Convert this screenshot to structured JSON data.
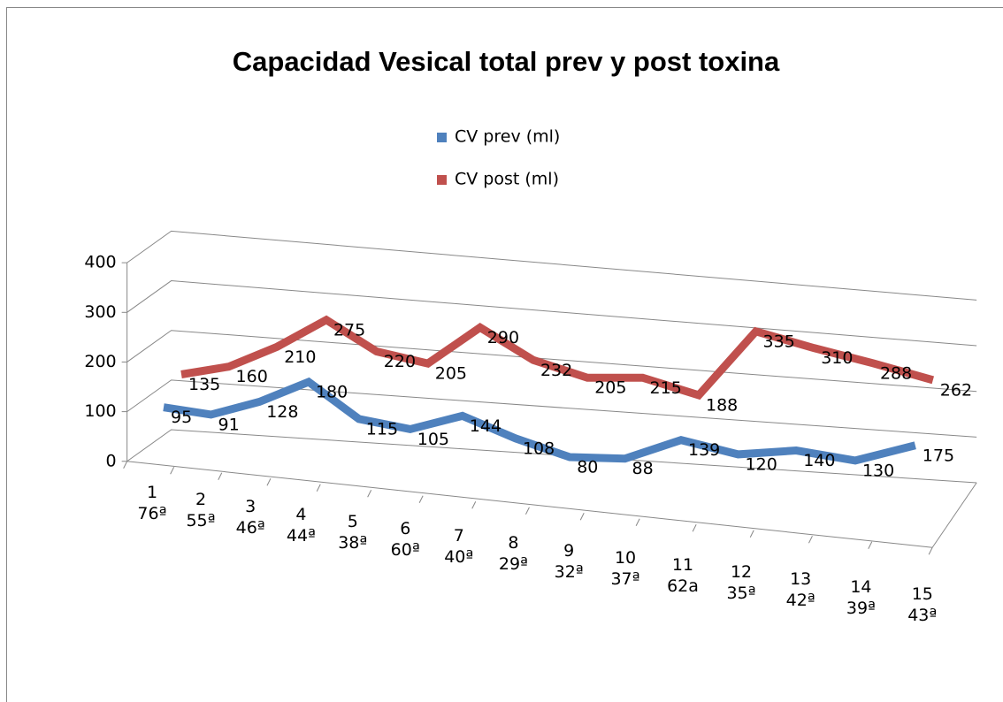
{
  "chart_data": {
    "type": "line3d",
    "title": "Capacidad Vesical total prev y post toxina",
    "categories": [
      "1\n76ª",
      "2\n55ª",
      "3\n46ª",
      "4\n44ª",
      "5\n38ª",
      "6\n60ª",
      "7\n40ª",
      "8\n29ª",
      "9\n32ª",
      "10\n37ª",
      "11\n62a",
      "12\n35ª",
      "13\n42ª",
      "14\n39ª",
      "15\n43ª"
    ],
    "series": [
      {
        "name": "CV prev (ml)",
        "color": "#4f81bd",
        "values": [
          95,
          91,
          128,
          180,
          115,
          105,
          144,
          108,
          80,
          88,
          139,
          120,
          140,
          130,
          175
        ]
      },
      {
        "name": "CV post (ml)",
        "color": "#c0504d",
        "values": [
          135,
          160,
          210,
          275,
          220,
          205,
          290,
          232,
          205,
          215,
          188,
          335,
          310,
          288,
          262
        ]
      }
    ],
    "ylim": [
      0,
      400
    ],
    "yticks": [
      0,
      100,
      200,
      300,
      400
    ],
    "grid": true,
    "legend": "top"
  }
}
